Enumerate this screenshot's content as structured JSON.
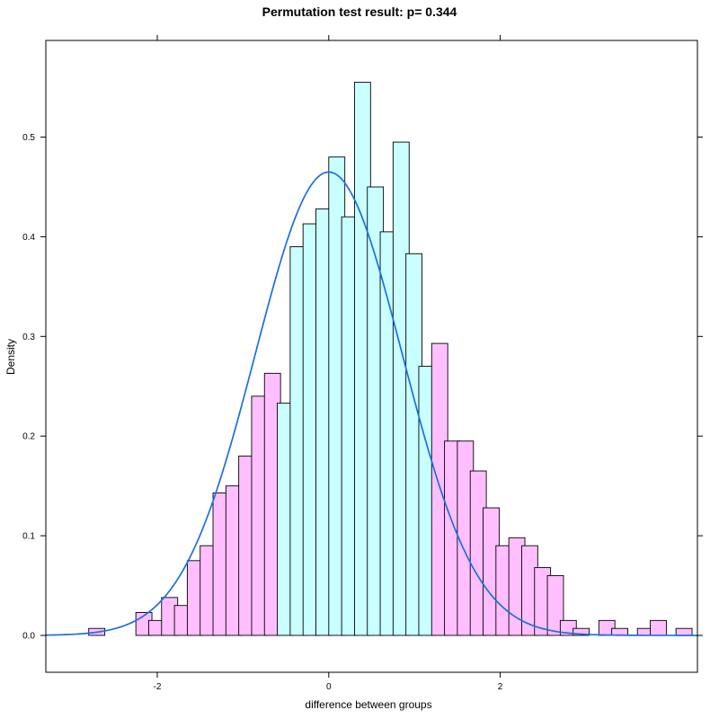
{
  "chart_data": {
    "type": "bar",
    "title": "Permutation test result: p= 0.344",
    "xlabel": "difference between groups",
    "ylabel": "Density",
    "xlim": [
      -3.3,
      4.3
    ],
    "ylim": [
      -0.037,
      0.597
    ],
    "bin_width": 0.1875,
    "xticks": [
      {
        "value": -2,
        "label": "-2"
      },
      {
        "value": 0,
        "label": "0"
      },
      {
        "value": 2,
        "label": "2"
      }
    ],
    "yticks": [
      {
        "value": 0.0,
        "label": "0.0"
      },
      {
        "value": 0.1,
        "label": "0.1"
      },
      {
        "value": 0.2,
        "label": "0.2"
      },
      {
        "value": 0.3,
        "label": "0.3"
      },
      {
        "value": 0.4,
        "label": "0.4"
      },
      {
        "value": 0.5,
        "label": "0.5"
      }
    ],
    "colors": {
      "tail": "#ffbfff",
      "center": "#c9ffff",
      "outline": "#000000",
      "curve": "#1a6fe0"
    },
    "bins": [
      {
        "x0": -2.975,
        "density": 0.0,
        "group": "tail"
      },
      {
        "x0": -2.8,
        "density": 0.007,
        "group": "tail"
      },
      {
        "x0": -2.25,
        "density": 0.023,
        "group": "tail"
      },
      {
        "x0": -2.1,
        "density": 0.015,
        "group": "tail"
      },
      {
        "x0": -1.95,
        "density": 0.038,
        "group": "tail"
      },
      {
        "x0": -1.8,
        "density": 0.03,
        "group": "tail"
      },
      {
        "x0": -1.65,
        "density": 0.075,
        "group": "tail"
      },
      {
        "x0": -1.5,
        "density": 0.09,
        "group": "tail"
      },
      {
        "x0": -1.35,
        "density": 0.143,
        "group": "tail"
      },
      {
        "x0": -1.2,
        "density": 0.15,
        "group": "tail"
      },
      {
        "x0": -1.05,
        "density": 0.18,
        "group": "tail"
      },
      {
        "x0": -0.9,
        "density": 0.24,
        "group": "tail"
      },
      {
        "x0": -0.75,
        "density": 0.263,
        "group": "tail"
      },
      {
        "x0": -0.6,
        "density": 0.233,
        "group": "center"
      },
      {
        "x0": -0.45,
        "density": 0.39,
        "group": "center"
      },
      {
        "x0": -0.3,
        "density": 0.413,
        "group": "center"
      },
      {
        "x0": -0.15,
        "density": 0.428,
        "group": "center"
      },
      {
        "x0": 0.0,
        "density": 0.48,
        "group": "center"
      },
      {
        "x0": 0.15,
        "density": 0.42,
        "group": "center"
      },
      {
        "x0": 0.3,
        "density": 0.555,
        "group": "center"
      },
      {
        "x0": 0.45,
        "density": 0.45,
        "group": "center"
      },
      {
        "x0": 0.6,
        "density": 0.405,
        "group": "center"
      },
      {
        "x0": 0.75,
        "density": 0.495,
        "group": "center"
      },
      {
        "x0": 0.9,
        "density": 0.383,
        "group": "center"
      },
      {
        "x0": 1.05,
        "density": 0.27,
        "group": "center"
      },
      {
        "x0": 1.2,
        "density": 0.293,
        "group": "tail"
      },
      {
        "x0": 1.35,
        "density": 0.195,
        "group": "tail"
      },
      {
        "x0": 1.5,
        "density": 0.195,
        "group": "tail"
      },
      {
        "x0": 1.65,
        "density": 0.165,
        "group": "tail"
      },
      {
        "x0": 1.8,
        "density": 0.128,
        "group": "tail"
      },
      {
        "x0": 1.95,
        "density": 0.09,
        "group": "tail"
      },
      {
        "x0": 2.1,
        "density": 0.098,
        "group": "tail"
      },
      {
        "x0": 2.25,
        "density": 0.09,
        "group": "tail"
      },
      {
        "x0": 2.4,
        "density": 0.068,
        "group": "tail"
      },
      {
        "x0": 2.55,
        "density": 0.06,
        "group": "tail"
      },
      {
        "x0": 2.7,
        "density": 0.015,
        "group": "tail"
      },
      {
        "x0": 2.85,
        "density": 0.007,
        "group": "tail"
      },
      {
        "x0": 3.15,
        "density": 0.015,
        "group": "tail"
      },
      {
        "x0": 3.3,
        "density": 0.007,
        "group": "tail"
      },
      {
        "x0": 3.6,
        "density": 0.007,
        "group": "tail"
      },
      {
        "x0": 3.75,
        "density": 0.015,
        "group": "tail"
      },
      {
        "x0": 4.05,
        "density": 0.007,
        "group": "tail"
      }
    ],
    "density_curve": {
      "type": "normal",
      "mean": 0.0,
      "sd": 0.858,
      "x_range": [
        -3.3,
        4.3
      ]
    }
  }
}
